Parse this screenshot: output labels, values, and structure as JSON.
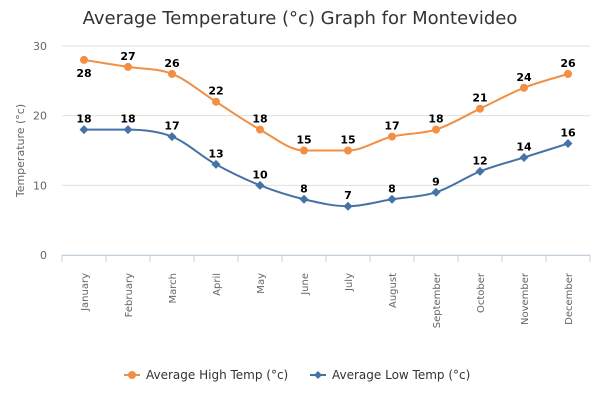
{
  "chart_data": {
    "type": "line",
    "title": "Average Temperature (°c) Graph for Montevideo",
    "xlabel": "",
    "ylabel": "Temperature (°c)",
    "categories": [
      "January",
      "February",
      "March",
      "April",
      "May",
      "June",
      "July",
      "August",
      "September",
      "October",
      "November",
      "December"
    ],
    "ylim": [
      0,
      30
    ],
    "yticks": [
      "0",
      "10",
      "20",
      "30"
    ],
    "grid": true,
    "legend_position": "bottom-center",
    "series": [
      {
        "name": "Average High Temp (°c)",
        "color": "#f28f43",
        "marker": "circle",
        "values": [
          28,
          27,
          26,
          22,
          18,
          15,
          15,
          17,
          18,
          21,
          24,
          26
        ]
      },
      {
        "name": "Average Low Temp (°c)",
        "color": "#4572a7",
        "marker": "diamond",
        "values": [
          18,
          18,
          17,
          13,
          10,
          8,
          7,
          8,
          9,
          12,
          14,
          16
        ]
      }
    ]
  }
}
